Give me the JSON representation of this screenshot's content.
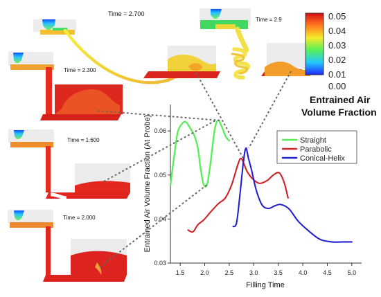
{
  "annotations": {
    "time_2_7": "Time = 2.700",
    "time_2_9": "Time = 2.9",
    "time_2_3": "Time = 2.300",
    "time_1_6": "Time = 1.600",
    "time_2_0": "Time = 2.000"
  },
  "colorbar": {
    "label_line1": "Entrained Air",
    "label_line2": "Volume Fraction",
    "ticks": [
      "0.05",
      "0.04",
      "0.03",
      "0.02",
      "0.01",
      "0.00"
    ],
    "colors": [
      "#1f2aff",
      "#21c7ff",
      "#56f05a",
      "#f5eb2b",
      "#ff7a1e",
      "#d80d17"
    ]
  },
  "chart_data": {
    "type": "line",
    "title": "",
    "xlabel": "Filling Time",
    "ylabel": "Entrained Air Volume Fraction (At Probe)",
    "xlim": [
      1.3,
      5.2
    ],
    "ylim": [
      0.03,
      0.066
    ],
    "xticks": [
      "1.5",
      "2.0",
      "2.5",
      "3.0",
      "3.5",
      "4.0",
      "4.5",
      "5.0"
    ],
    "yticks": [
      "0.03",
      "0.04",
      "0.05",
      "0.06"
    ],
    "legend": {
      "placement": "top-right",
      "entries": [
        "Straight",
        "Parabolic",
        "Conical-Helix"
      ]
    },
    "series": [
      {
        "name": "Straight",
        "color": "#55ef55",
        "points": [
          [
            1.3,
            0.0478
          ],
          [
            1.38,
            0.0545
          ],
          [
            1.45,
            0.0598
          ],
          [
            1.55,
            0.0618
          ],
          [
            1.62,
            0.062
          ],
          [
            1.7,
            0.0607
          ],
          [
            1.78,
            0.0592
          ],
          [
            1.86,
            0.0561
          ],
          [
            1.92,
            0.0511
          ],
          [
            1.98,
            0.0478
          ],
          [
            2.05,
            0.0479
          ],
          [
            2.12,
            0.053
          ],
          [
            2.2,
            0.0601
          ],
          [
            2.27,
            0.0624
          ],
          [
            2.35,
            0.0609
          ],
          [
            2.43,
            0.0587
          ],
          [
            2.5,
            0.0578
          ]
        ]
      },
      {
        "name": "Parabolic",
        "color": "#ce2126",
        "points": [
          [
            1.66,
            0.0375
          ],
          [
            1.76,
            0.0371
          ],
          [
            1.86,
            0.0387
          ],
          [
            1.98,
            0.0398
          ],
          [
            2.12,
            0.0416
          ],
          [
            2.28,
            0.0435
          ],
          [
            2.42,
            0.0448
          ],
          [
            2.55,
            0.0478
          ],
          [
            2.68,
            0.0525
          ],
          [
            2.75,
            0.0537
          ],
          [
            2.86,
            0.0509
          ],
          [
            2.98,
            0.0491
          ],
          [
            3.12,
            0.0481
          ],
          [
            3.28,
            0.0488
          ],
          [
            3.4,
            0.05
          ],
          [
            3.52,
            0.0505
          ],
          [
            3.62,
            0.0483
          ],
          [
            3.7,
            0.0448
          ]
        ]
      },
      {
        "name": "Conical-Helix",
        "color": "#2321cf",
        "points": [
          [
            2.58,
            0.0383
          ],
          [
            2.65,
            0.0392
          ],
          [
            2.72,
            0.0457
          ],
          [
            2.79,
            0.0531
          ],
          [
            2.84,
            0.0561
          ],
          [
            2.89,
            0.0539
          ],
          [
            2.96,
            0.0509
          ],
          [
            3.05,
            0.0466
          ],
          [
            3.17,
            0.0432
          ],
          [
            3.3,
            0.0424
          ],
          [
            3.43,
            0.043
          ],
          [
            3.55,
            0.0433
          ],
          [
            3.72,
            0.0423
          ],
          [
            3.9,
            0.0396
          ],
          [
            4.12,
            0.0373
          ],
          [
            4.35,
            0.0354
          ],
          [
            4.6,
            0.0348
          ],
          [
            4.82,
            0.0348
          ],
          [
            5.0,
            0.0348
          ]
        ]
      }
    ]
  }
}
